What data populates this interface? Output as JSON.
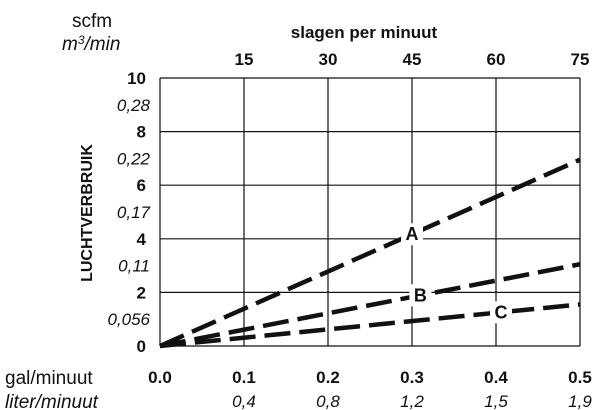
{
  "chart_data": {
    "type": "line",
    "ylabel": "LUCHTVERBRUIK",
    "x_bottom": {
      "unit_primary": "gal/minuut",
      "unit_secondary": "liter/minuut",
      "range": [
        0,
        0.5
      ],
      "ticks": [
        "0.0",
        "0.1",
        "0.2",
        "0.3",
        "0.4",
        "0.5"
      ],
      "ticks_secondary": [
        "",
        "0,4",
        "0,8",
        "1,2",
        "1,5",
        "1,9"
      ]
    },
    "x_top": {
      "label": "slagen per minuut",
      "ticks": [
        "15",
        "30",
        "45",
        "60",
        "75"
      ]
    },
    "y_left": {
      "unit_primary": "scfm",
      "unit_secondary_base": "m",
      "unit_secondary_sup": "3",
      "unit_secondary_rest": "/min",
      "range": [
        0,
        10
      ],
      "ticks": [
        "0",
        "2",
        "4",
        "6",
        "8",
        "10"
      ],
      "ticks_secondary": [
        "0,056",
        "0,11",
        "0,17",
        "0,22",
        "0,28"
      ]
    },
    "grid": true,
    "series": [
      {
        "name": "A",
        "x": [
          0,
          0.5
        ],
        "y": [
          0,
          6.95
        ]
      },
      {
        "name": "B",
        "x": [
          0,
          0.5
        ],
        "y": [
          0,
          3.05
        ]
      },
      {
        "name": "C",
        "x": [
          0,
          0.5
        ],
        "y": [
          0,
          1.55
        ]
      }
    ]
  }
}
